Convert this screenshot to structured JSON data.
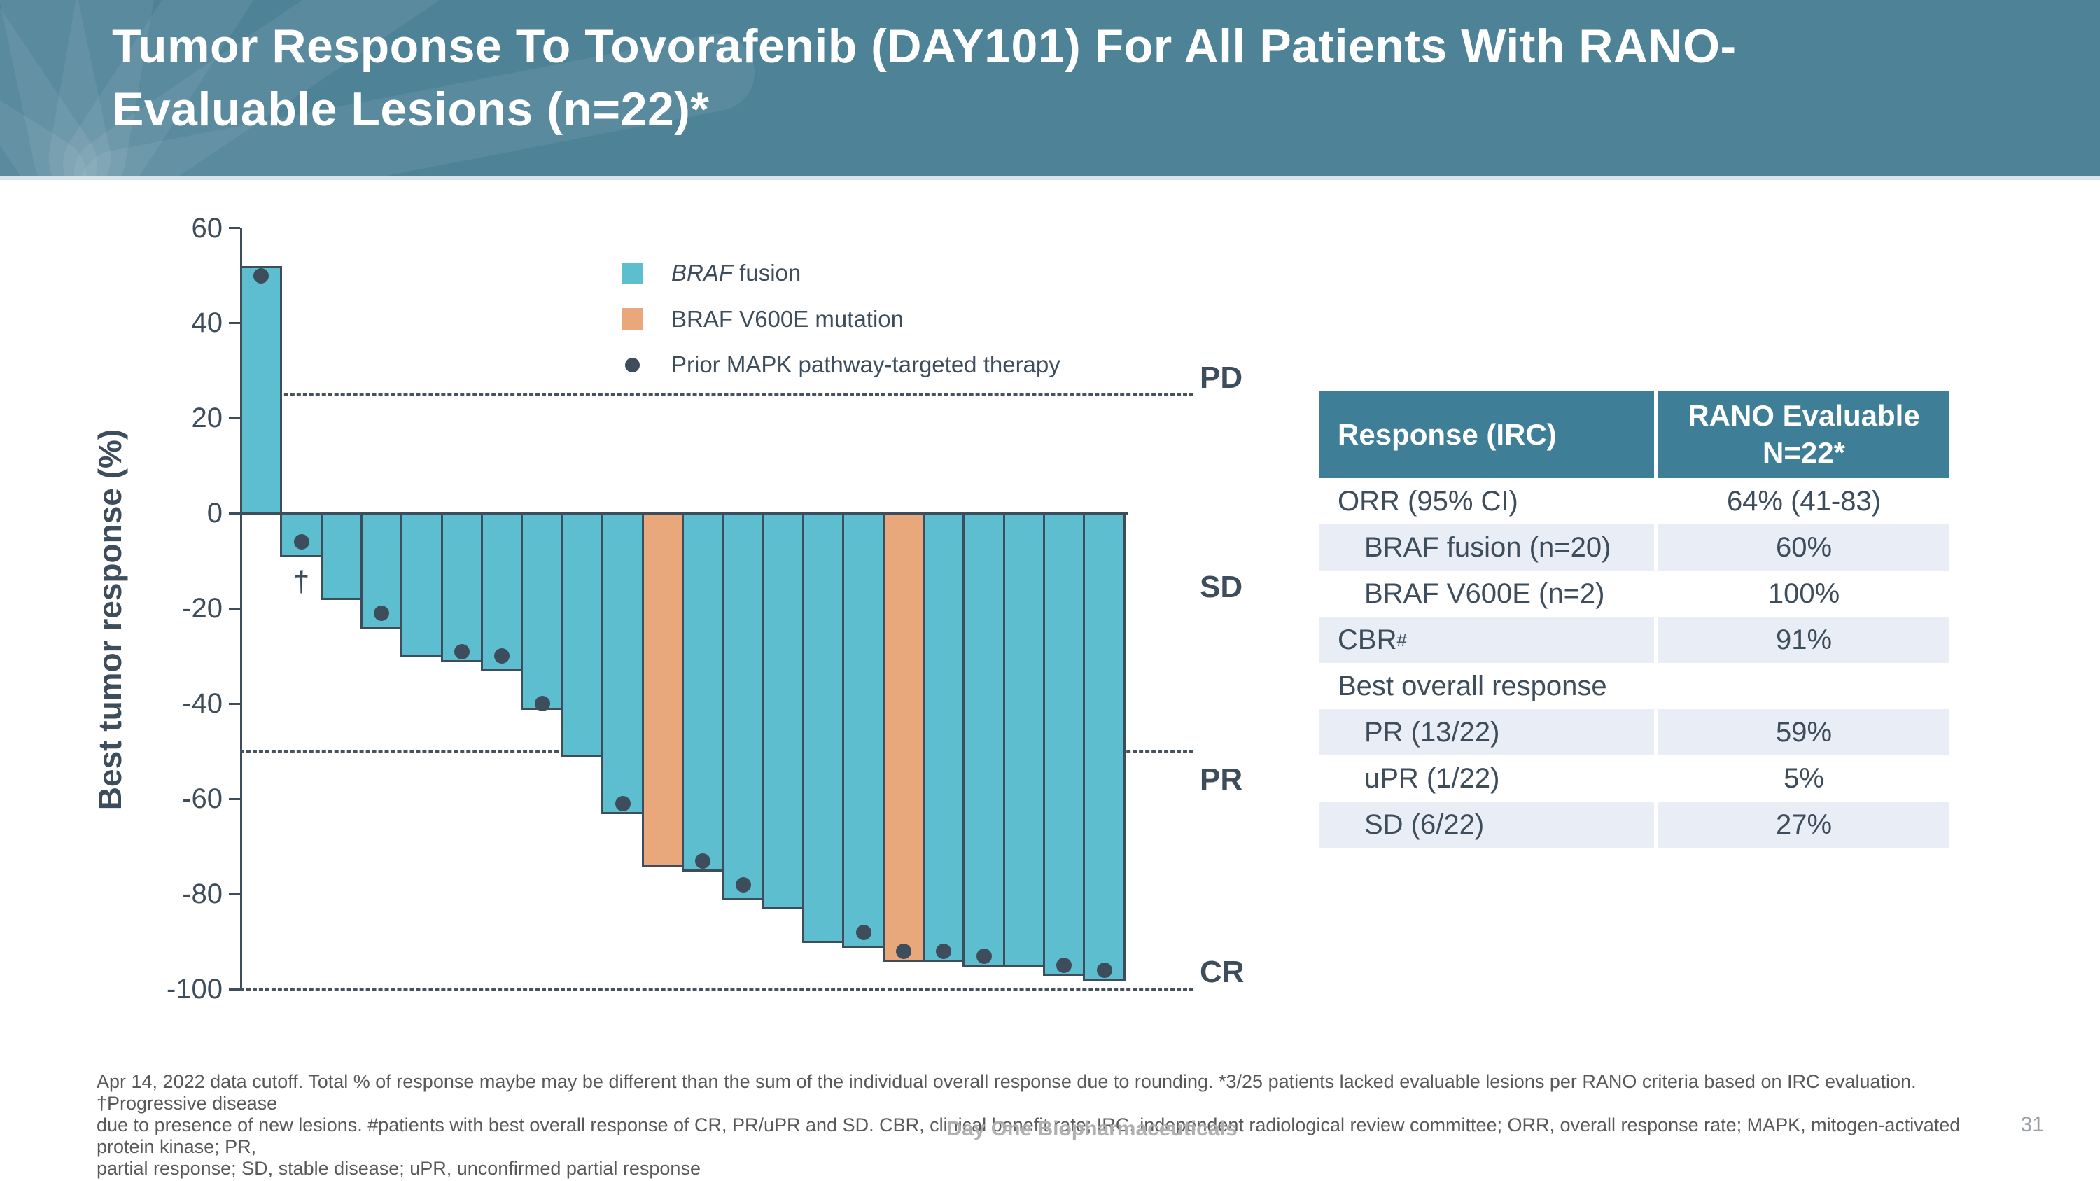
{
  "slide": {
    "title": "Tumor Response To Tovorafenib (DAY101) For All Patients With RANO-\nEvaluable Lesions (n=22)*",
    "footnote": "Apr 14, 2022 data cutoff. Total % of response maybe may be different than the sum of the individual overall response due to rounding. *3/25 patients lacked evaluable lesions per RANO criteria based on IRC evaluation. †Progressive disease\ndue to presence of new lesions. #patients with best overall response of CR, PR/uPR and SD. CBR, clinical benefit rate; IRC, independent radiological review committee; ORR, overall response rate; MAPK, mitogen-activated protein kinase; PR,\npartial response; SD, stable disease; uPR, unconfirmed partial response",
    "brand": "Day One Biopharmaceuticals",
    "page_number": "31"
  },
  "colors": {
    "header_background": "#4D8297",
    "fusion": "#5CBECF",
    "mutation": "#E9A87C",
    "dot": "#3D4D5C",
    "ink": "#3D4D5C",
    "table_header_background": "#3F7E97",
    "table_row_shade": "#E9EDF6",
    "footnote_text": "#595959",
    "brand_text": "#B0B0B0",
    "page_number_text": "#9AA0A6"
  },
  "chart_data": {
    "type": "bar",
    "subtype": "waterfall",
    "title": "",
    "xlabel": "",
    "ylabel": "Best tumor response (%)",
    "ylim": [
      -100,
      60
    ],
    "yticks": [
      60,
      40,
      20,
      0,
      -20,
      -40,
      -60,
      -80,
      -100
    ],
    "grid": false,
    "legend_position": "top-center",
    "legend": [
      {
        "type": "swatch",
        "color_key": "fusion",
        "label_italic": "BRAF",
        "label": " fusion"
      },
      {
        "type": "swatch",
        "color_key": "mutation",
        "label_italic": "",
        "label": "BRAF V600E mutation"
      },
      {
        "type": "marker",
        "color_key": "dot",
        "label_italic": "",
        "label": "Prior MAPK pathway-targeted therapy"
      }
    ],
    "reference_lines": [
      {
        "label": "PD",
        "y": 25
      },
      {
        "label": "PR",
        "y": -50
      },
      {
        "label": "CR",
        "y": -100
      }
    ],
    "response_labels": [
      {
        "label": "PD",
        "y": 28.5
      },
      {
        "label": "SD",
        "y": -15.5
      },
      {
        "label": "PR",
        "y": -56
      },
      {
        "label": "CR",
        "y": -96.5
      }
    ],
    "bars": [
      {
        "patient": 1,
        "value": 52,
        "group": "BRAF fusion",
        "prior_mapk_dot": 50
      },
      {
        "patient": 2,
        "value": -9,
        "group": "BRAF fusion",
        "prior_mapk_dot": -6,
        "annotation": "†"
      },
      {
        "patient": 3,
        "value": -18,
        "group": "BRAF fusion"
      },
      {
        "patient": 4,
        "value": -24,
        "group": "BRAF fusion",
        "prior_mapk_dot": -21
      },
      {
        "patient": 5,
        "value": -30,
        "group": "BRAF fusion"
      },
      {
        "patient": 6,
        "value": -31,
        "group": "BRAF fusion",
        "prior_mapk_dot": -29
      },
      {
        "patient": 7,
        "value": -33,
        "group": "BRAF fusion",
        "prior_mapk_dot": -30
      },
      {
        "patient": 8,
        "value": -41,
        "group": "BRAF fusion",
        "prior_mapk_dot": -40
      },
      {
        "patient": 9,
        "value": -51,
        "group": "BRAF fusion"
      },
      {
        "patient": 10,
        "value": -63,
        "group": "BRAF fusion",
        "prior_mapk_dot": -61
      },
      {
        "patient": 11,
        "value": -74,
        "group": "BRAF V600E mutation"
      },
      {
        "patient": 12,
        "value": -75,
        "group": "BRAF fusion",
        "prior_mapk_dot": -73
      },
      {
        "patient": 13,
        "value": -81,
        "group": "BRAF fusion",
        "prior_mapk_dot": -78
      },
      {
        "patient": 14,
        "value": -83,
        "group": "BRAF fusion"
      },
      {
        "patient": 15,
        "value": -90,
        "group": "BRAF fusion"
      },
      {
        "patient": 16,
        "value": -91,
        "group": "BRAF fusion",
        "prior_mapk_dot": -88
      },
      {
        "patient": 17,
        "value": -94,
        "group": "BRAF V600E mutation",
        "prior_mapk_dot": -92
      },
      {
        "patient": 18,
        "value": -94,
        "group": "BRAF fusion",
        "prior_mapk_dot": -92
      },
      {
        "patient": 19,
        "value": -95,
        "group": "BRAF fusion",
        "prior_mapk_dot": -93
      },
      {
        "patient": 20,
        "value": -95,
        "group": "BRAF fusion"
      },
      {
        "patient": 21,
        "value": -97,
        "group": "BRAF fusion",
        "prior_mapk_dot": -95
      },
      {
        "patient": 22,
        "value": -98,
        "group": "BRAF fusion",
        "prior_mapk_dot": -96
      }
    ]
  },
  "table": {
    "header": {
      "col1": "Response (IRC)",
      "col2": "RANO Evaluable\nN=22*"
    },
    "rows": [
      {
        "label": "ORR (95% CI)",
        "sup": "",
        "value": "64% (41-83)",
        "indent": false,
        "shaded": false
      },
      {
        "label": "BRAF fusion (n=20)",
        "sup": "",
        "value": "60%",
        "indent": true,
        "shaded": true
      },
      {
        "label": "BRAF V600E (n=2)",
        "sup": "",
        "value": "100%",
        "indent": true,
        "shaded": false
      },
      {
        "label": "CBR",
        "sup": "#",
        "value": "91%",
        "indent": false,
        "shaded": true
      },
      {
        "label": "Best overall response",
        "sup": "",
        "value": "",
        "indent": false,
        "shaded": false
      },
      {
        "label": "PR (13/22)",
        "sup": "",
        "value": "59%",
        "indent": true,
        "shaded": true
      },
      {
        "label": "uPR (1/22)",
        "sup": "",
        "value": "5%",
        "indent": true,
        "shaded": false
      },
      {
        "label": "SD (6/22)",
        "sup": "",
        "value": "27%",
        "indent": true,
        "shaded": true
      }
    ]
  }
}
